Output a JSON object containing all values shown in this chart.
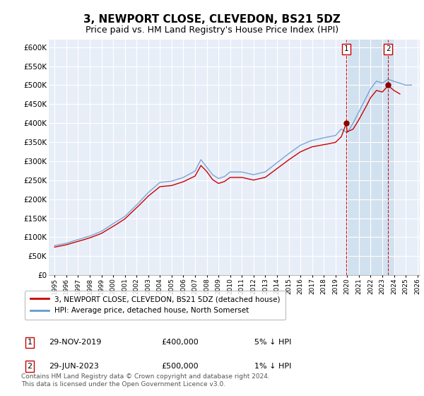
{
  "title": "3, NEWPORT CLOSE, CLEVEDON, BS21 5DZ",
  "subtitle": "Price paid vs. HM Land Registry's House Price Index (HPI)",
  "title_fontsize": 11,
  "subtitle_fontsize": 9,
  "ylim": [
    0,
    620000
  ],
  "yticks": [
    0,
    50000,
    100000,
    150000,
    200000,
    250000,
    300000,
    350000,
    400000,
    450000,
    500000,
    550000,
    600000
  ],
  "ytick_labels": [
    "£0",
    "£50K",
    "£100K",
    "£150K",
    "£200K",
    "£250K",
    "£300K",
    "£350K",
    "£400K",
    "£450K",
    "£500K",
    "£550K",
    "£600K"
  ],
  "background_color": "#e8eef8",
  "grid_color": "#ffffff",
  "hpi_color": "#6699cc",
  "price_color": "#cc0000",
  "dashed_color": "#cc0000",
  "shade_color": "#d0e0f0",
  "legend_label_price": "3, NEWPORT CLOSE, CLEVEDON, BS21 5DZ (detached house)",
  "legend_label_hpi": "HPI: Average price, detached house, North Somerset",
  "annotation1_label": "1",
  "annotation1_date": "29-NOV-2019",
  "annotation1_price": "£400,000",
  "annotation1_pct": "5% ↓ HPI",
  "annotation2_label": "2",
  "annotation2_date": "29-JUN-2023",
  "annotation2_price": "£500,000",
  "annotation2_pct": "1% ↓ HPI",
  "footer": "Contains HM Land Registry data © Crown copyright and database right 2024.\nThis data is licensed under the Open Government Licence v3.0.",
  "sale1_x": 2019.917,
  "sale1_y": 400000,
  "sale2_x": 2023.5,
  "sale2_y": 500000,
  "xlim_left": 1994.5,
  "xlim_right": 2026.2,
  "xtick_years": [
    1995,
    1996,
    1997,
    1998,
    1999,
    2000,
    2001,
    2002,
    2003,
    2004,
    2005,
    2006,
    2007,
    2008,
    2009,
    2010,
    2011,
    2012,
    2013,
    2014,
    2015,
    2016,
    2017,
    2018,
    2019,
    2020,
    2021,
    2022,
    2023,
    2024,
    2025,
    2026
  ]
}
